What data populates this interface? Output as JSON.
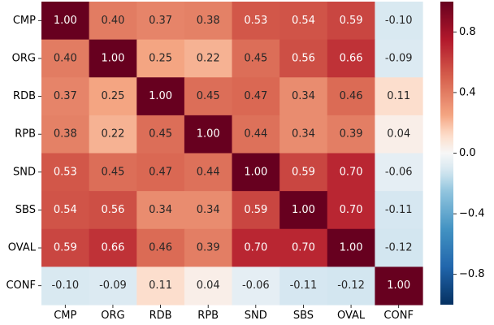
{
  "chart_data": {
    "type": "heatmap",
    "title": "",
    "xlabel": "",
    "ylabel": "",
    "x_categories": [
      "CMP",
      "ORG",
      "RDB",
      "RPB",
      "SND",
      "SBS",
      "OVAL",
      "CONF"
    ],
    "y_categories": [
      "CMP",
      "ORG",
      "RDB",
      "RPB",
      "SND",
      "SBS",
      "OVAL",
      "CONF"
    ],
    "values": [
      [
        1.0,
        0.4,
        0.37,
        0.38,
        0.53,
        0.54,
        0.59,
        -0.1
      ],
      [
        0.4,
        1.0,
        0.25,
        0.22,
        0.45,
        0.56,
        0.66,
        -0.09
      ],
      [
        0.37,
        0.25,
        1.0,
        0.45,
        0.47,
        0.34,
        0.46,
        0.11
      ],
      [
        0.38,
        0.22,
        0.45,
        1.0,
        0.44,
        0.34,
        0.39,
        0.04
      ],
      [
        0.53,
        0.45,
        0.47,
        0.44,
        1.0,
        0.59,
        0.7,
        -0.06
      ],
      [
        0.54,
        0.56,
        0.34,
        0.34,
        0.59,
        1.0,
        0.7,
        -0.11
      ],
      [
        0.59,
        0.66,
        0.46,
        0.39,
        0.7,
        0.7,
        1.0,
        -0.12
      ],
      [
        -0.1,
        -0.09,
        0.11,
        0.04,
        -0.06,
        -0.11,
        -0.12,
        1.0
      ]
    ],
    "value_format_decimals": 2,
    "colormap": "RdBu_r",
    "colorbar": {
      "range": [
        -1.0,
        1.0
      ],
      "ticks": [
        0.8,
        0.4,
        0.0,
        -0.4,
        -0.8
      ],
      "tick_labels": [
        "0.8",
        "0.4",
        "0.0",
        "−0.4",
        "−0.8"
      ],
      "placement": "right"
    },
    "grid": false
  }
}
